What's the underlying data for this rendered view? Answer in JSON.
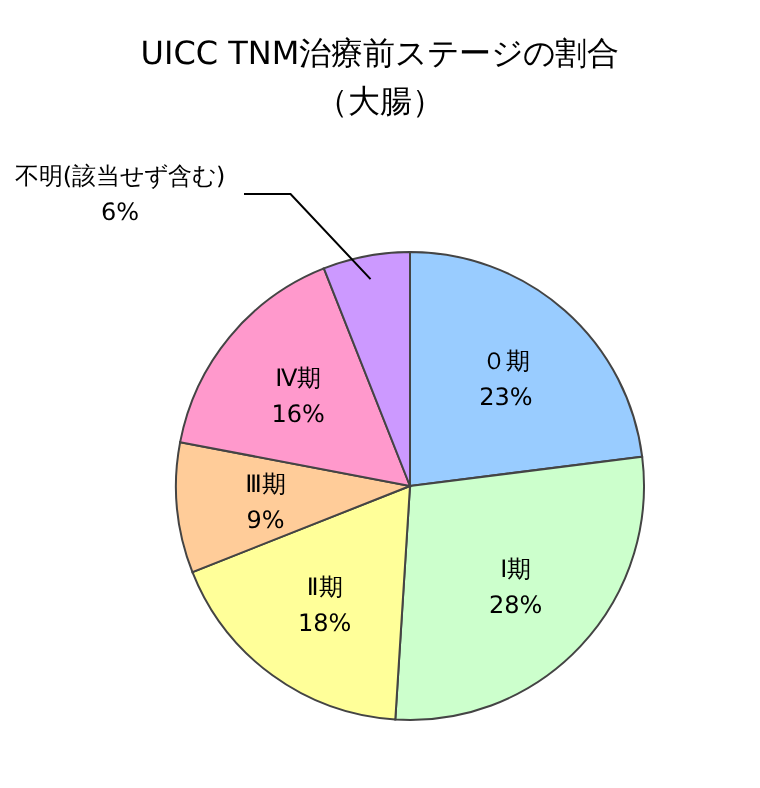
{
  "chart_data": {
    "type": "pie",
    "title": "UICC TNM治療前ステージの割合",
    "subtitle": "（大腸）",
    "categories": [
      "０期",
      "Ⅰ期",
      "Ⅱ期",
      "Ⅲ期",
      "Ⅳ期",
      "不明(該当せず含む)"
    ],
    "values": [
      23,
      28,
      18,
      9,
      16,
      6
    ],
    "value_labels": [
      "23%",
      "28%",
      "18%",
      "9%",
      "16%",
      "6%"
    ],
    "colors": [
      "#99ccff",
      "#ccffcc",
      "#ffff99",
      "#ffcc99",
      "#ff99cc",
      "#cc99ff"
    ]
  }
}
